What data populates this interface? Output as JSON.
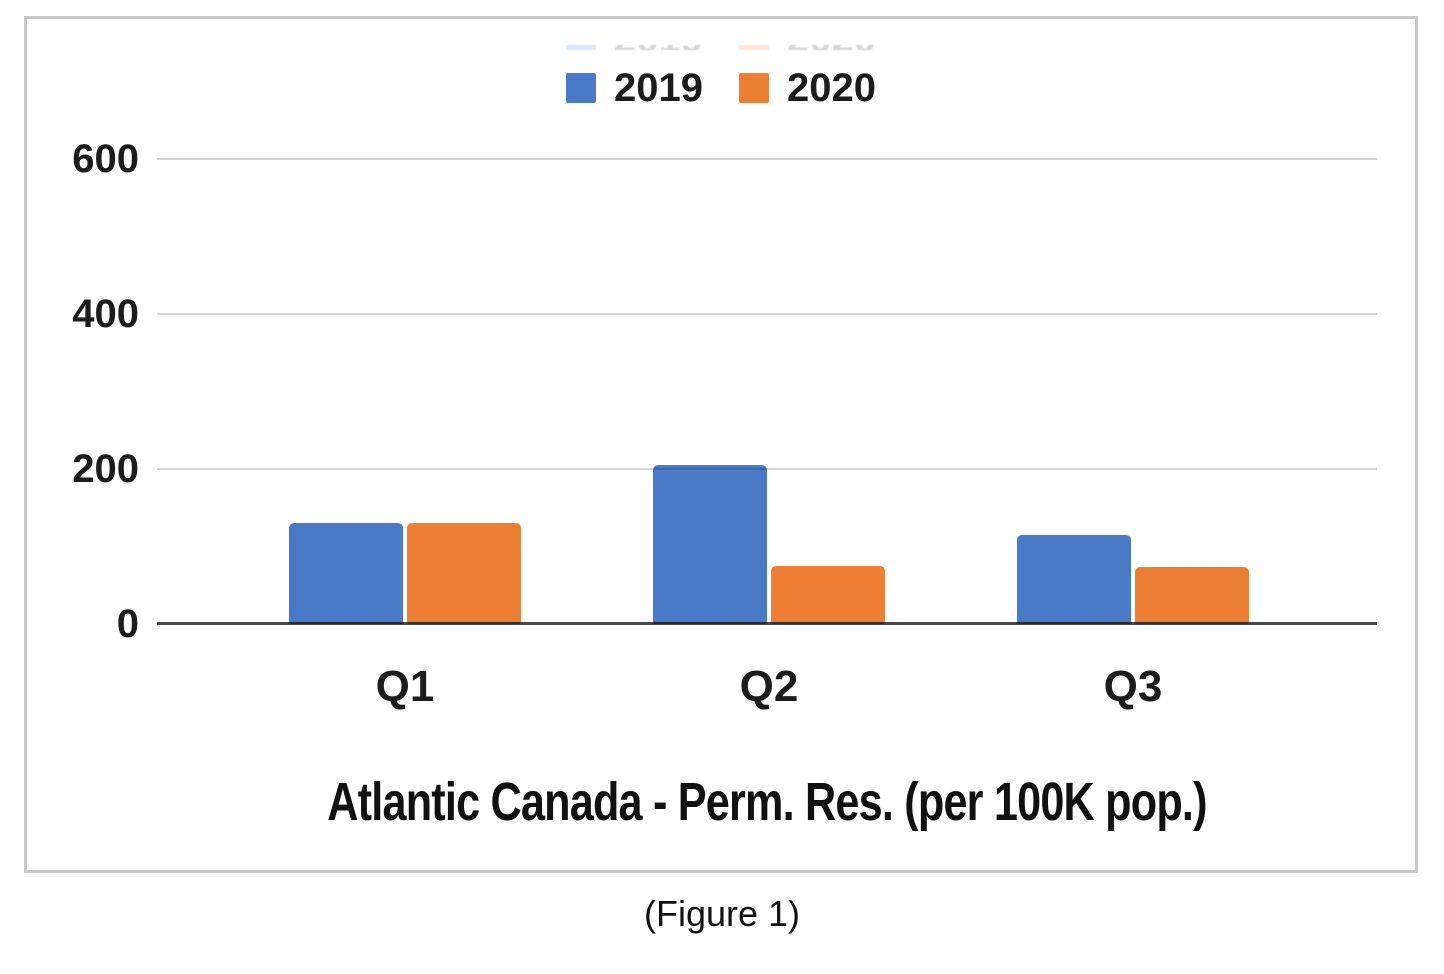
{
  "figure": {
    "caption": "(Figure 1)"
  },
  "chart": {
    "title": "Atlantic Canada - Perm. Res. (per 100K pop.)",
    "accent_colors": {
      "series_2019": "#4a79c6",
      "series_2020": "#ec7f33"
    },
    "gridline_color": "#d9d9d9",
    "axis_line_color": "#444444",
    "border_color": "#c8c8c8"
  },
  "chart_data": {
    "type": "bar",
    "title": "Atlantic Canada - Perm. Res. (per 100K pop.)",
    "categories": [
      "Q1",
      "Q2",
      "Q3"
    ],
    "series": [
      {
        "name": "2019",
        "color": "#4a79c6",
        "values": [
          130,
          205,
          115
        ]
      },
      {
        "name": "2020",
        "color": "#ec7f33",
        "values": [
          130,
          75,
          73
        ]
      }
    ],
    "xlabel": "",
    "ylabel": "",
    "ylim": [
      0,
      600
    ],
    "yticks": [
      0,
      200,
      400,
      600
    ],
    "grid": true,
    "grid_over_bars": true,
    "legend_position": "top-center",
    "caption_below": "(Figure 1)"
  }
}
